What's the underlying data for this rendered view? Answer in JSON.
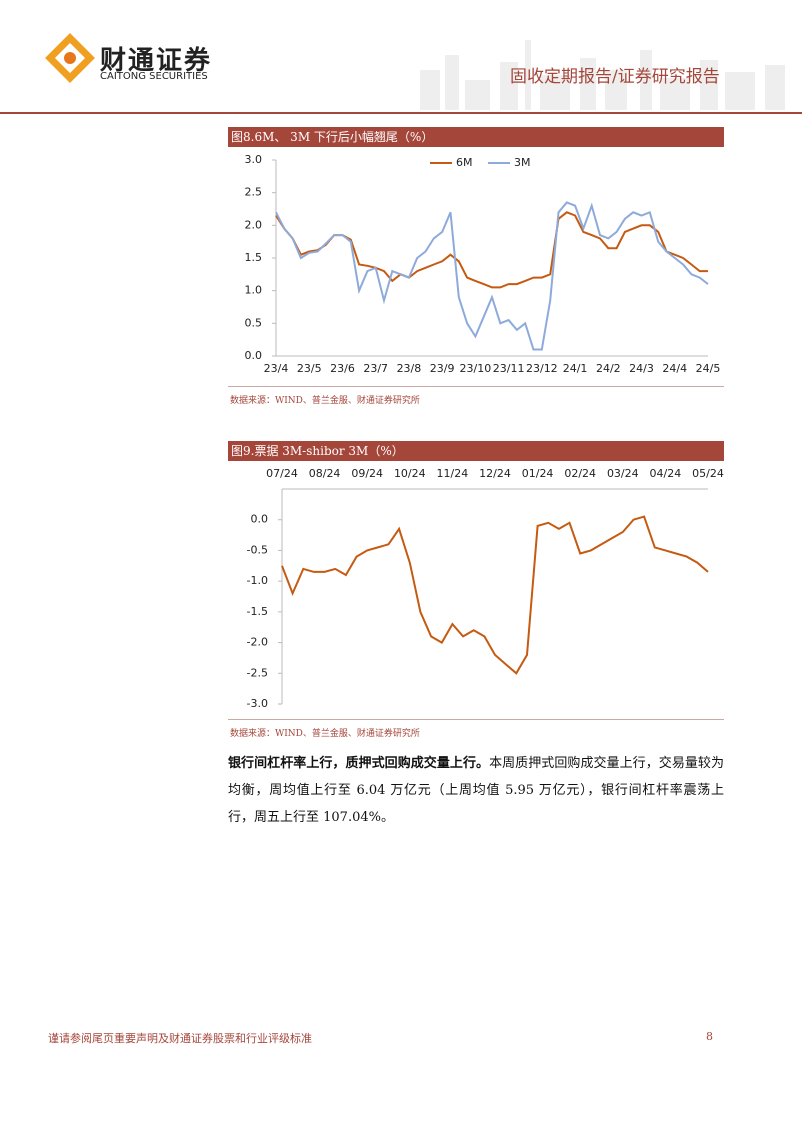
{
  "header": {
    "company_cn": "财通证券",
    "company_en": "CAITONG SECURITIES",
    "report_type": "固收定期报告/证券研究报告"
  },
  "chart_data": [
    {
      "type": "line",
      "title": "图8.6M、 3M 下行后小幅翘尾（%）",
      "source": "数据来源：WIND、普兰金服、财通证券研究所",
      "categories": [
        "23/4",
        null,
        null,
        null,
        "23/5",
        null,
        null,
        null,
        "23/6",
        null,
        null,
        null,
        "23/7",
        null,
        null,
        null,
        "23/8",
        null,
        null,
        null,
        "23/9",
        null,
        null,
        null,
        "23/10",
        null,
        null,
        null,
        "23/11",
        null,
        null,
        null,
        "23/12",
        null,
        null,
        null,
        "24/1",
        null,
        null,
        null,
        "24/2",
        null,
        null,
        null,
        "24/3",
        null,
        null,
        null,
        "24/4",
        null,
        null,
        null,
        "24/5"
      ],
      "series": [
        {
          "name": "6M",
          "color": "#c55a11",
          "values": [
            2.15,
            1.95,
            1.8,
            1.55,
            1.6,
            1.62,
            1.7,
            1.85,
            1.85,
            1.78,
            1.4,
            1.38,
            1.35,
            1.3,
            1.15,
            1.25,
            1.2,
            1.3,
            1.35,
            1.4,
            1.45,
            1.55,
            1.45,
            1.2,
            1.15,
            1.1,
            1.05,
            1.05,
            1.1,
            1.1,
            1.15,
            1.2,
            1.2,
            1.25,
            2.1,
            2.2,
            2.15,
            1.9,
            1.85,
            1.8,
            1.65,
            1.65,
            1.9,
            1.95,
            2.0,
            2.0,
            1.9,
            1.6,
            1.55,
            1.5,
            1.4,
            1.3,
            1.3
          ]
        },
        {
          "name": "3M",
          "color": "#8eaadb",
          "values": [
            2.2,
            1.95,
            1.8,
            1.5,
            1.58,
            1.6,
            1.72,
            1.85,
            1.85,
            1.75,
            1.0,
            1.3,
            1.35,
            0.85,
            1.3,
            1.25,
            1.2,
            1.5,
            1.6,
            1.8,
            1.9,
            2.2,
            0.9,
            0.5,
            0.3,
            0.6,
            0.9,
            0.5,
            0.55,
            0.4,
            0.5,
            0.1,
            0.1,
            0.85,
            2.2,
            2.35,
            2.3,
            1.95,
            2.3,
            1.85,
            1.8,
            1.9,
            2.1,
            2.2,
            2.15,
            2.2,
            1.75,
            1.6,
            1.5,
            1.4,
            1.25,
            1.2,
            1.1
          ]
        }
      ],
      "ylim": [
        0,
        3
      ],
      "yticks": [
        {
          "value": 0,
          "label": "0.0"
        },
        0.5,
        {
          "value": 1,
          "label": "1.0"
        },
        1.5,
        {
          "value": 2,
          "label": "2.0"
        },
        2.5,
        {
          "value": 3,
          "label": "3.0"
        }
      ],
      "grid": false,
      "legend": "top",
      "xaxis": "bottom"
    },
    {
      "type": "line",
      "title": "图9.票据 3M-shibor 3M（%）",
      "source": "数据来源：WIND、普兰金服、财通证券研究所",
      "categories": [
        "07/24",
        null,
        null,
        null,
        "08/24",
        null,
        null,
        null,
        "09/24",
        null,
        null,
        null,
        "10/24",
        null,
        null,
        null,
        "11/24",
        null,
        null,
        null,
        "12/24",
        null,
        null,
        null,
        "01/24",
        null,
        null,
        null,
        "02/24",
        null,
        null,
        null,
        "03/24",
        null,
        null,
        null,
        "04/24",
        null,
        null,
        null,
        "05/24"
      ],
      "values": [
        -0.75,
        -1.2,
        -0.8,
        -0.85,
        -0.85,
        -0.8,
        -0.9,
        -0.6,
        -0.5,
        -0.45,
        -0.4,
        -0.15,
        -0.7,
        -1.5,
        -1.9,
        -2.0,
        -1.7,
        -1.9,
        -1.8,
        -1.9,
        -2.2,
        -2.35,
        -2.5,
        -2.2,
        -0.1,
        -0.05,
        -0.15,
        -0.05,
        -0.55,
        -0.5,
        -0.4,
        -0.3,
        -0.2,
        0.0,
        0.05,
        -0.45,
        -0.5,
        -0.55,
        -0.6,
        -0.7,
        -0.85
      ],
      "color": "#c55a11",
      "ylim": [
        -3,
        0.5
      ],
      "yticks": [
        {
          "value": 0,
          "label": "0.0"
        },
        -0.5,
        {
          "value": -1,
          "label": "-1.0"
        },
        -1.5,
        {
          "value": -2,
          "label": "-2.0"
        },
        -2.5,
        {
          "value": -3,
          "label": "-3.0"
        }
      ],
      "grid": false,
      "xaxis": "top"
    }
  ],
  "body": {
    "lead": "银行间杠杆率上行，质押式回购成交量上行。",
    "text": "本周质押式回购成交量上行，交易量较为均衡，周均值上行至 6.04 万亿元（上周均值 5.95 万亿元），银行间杠杆率震荡上行，周五上行至 107.04%。"
  },
  "footer": {
    "disclaimer": "谨请参阅尾页重要声明及财通证券股票和行业评级标准",
    "page": "8"
  }
}
